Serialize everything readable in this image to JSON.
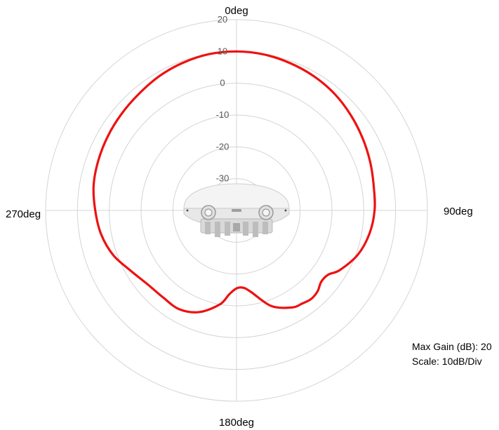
{
  "chart_data": {
    "type": "polar-line",
    "angle_labels": [
      "0deg",
      "90deg",
      "180deg",
      "270deg"
    ],
    "radial_ticks": [
      20,
      10,
      0,
      -10,
      -20,
      -30
    ],
    "r_range": [
      -40,
      20
    ],
    "rings": [
      -30,
      -20,
      -10,
      0,
      10,
      20
    ],
    "grid": true,
    "angle_direction": "clockwise",
    "zero_angle": "top",
    "series": [
      {
        "color": "#ee1111",
        "points": [
          [
            0,
            10
          ],
          [
            10,
            9.8
          ],
          [
            20,
            9.3
          ],
          [
            30,
            8.7
          ],
          [
            40,
            7.9
          ],
          [
            50,
            6.8
          ],
          [
            60,
            5.7
          ],
          [
            70,
            4.7
          ],
          [
            80,
            3.8
          ],
          [
            90,
            3.4
          ],
          [
            100,
            2.4
          ],
          [
            110,
            0.6
          ],
          [
            120,
            -2.5
          ],
          [
            125,
            -4.8
          ],
          [
            130,
            -5.2
          ],
          [
            135,
            -4.0
          ],
          [
            140,
            -3.6
          ],
          [
            145,
            -4.2
          ],
          [
            150,
            -4.8
          ],
          [
            160,
            -8.0
          ],
          [
            170,
            -14.0
          ],
          [
            175,
            -15.6
          ],
          [
            180,
            -15.5
          ],
          [
            185,
            -13.5
          ],
          [
            190,
            -10.0
          ],
          [
            200,
            -6.0
          ],
          [
            210,
            -4.1
          ],
          [
            220,
            -4.2
          ],
          [
            230,
            -3.7
          ],
          [
            240,
            -1.8
          ],
          [
            250,
            1.2
          ],
          [
            260,
            3.2
          ],
          [
            270,
            4.4
          ],
          [
            280,
            5.6
          ],
          [
            290,
            6.2
          ],
          [
            300,
            6.7
          ],
          [
            310,
            7.2
          ],
          [
            320,
            7.8
          ],
          [
            330,
            8.7
          ],
          [
            340,
            9.4
          ],
          [
            350,
            9.9
          ],
          [
            360,
            10
          ]
        ]
      }
    ]
  },
  "notes": {
    "max_gain": "Max Gain (dB): 20",
    "scale": "Scale: 10dB/Div"
  },
  "colors": {
    "grid": "#d4d4d4",
    "series": "#ee1111",
    "tick_text": "#595959"
  }
}
